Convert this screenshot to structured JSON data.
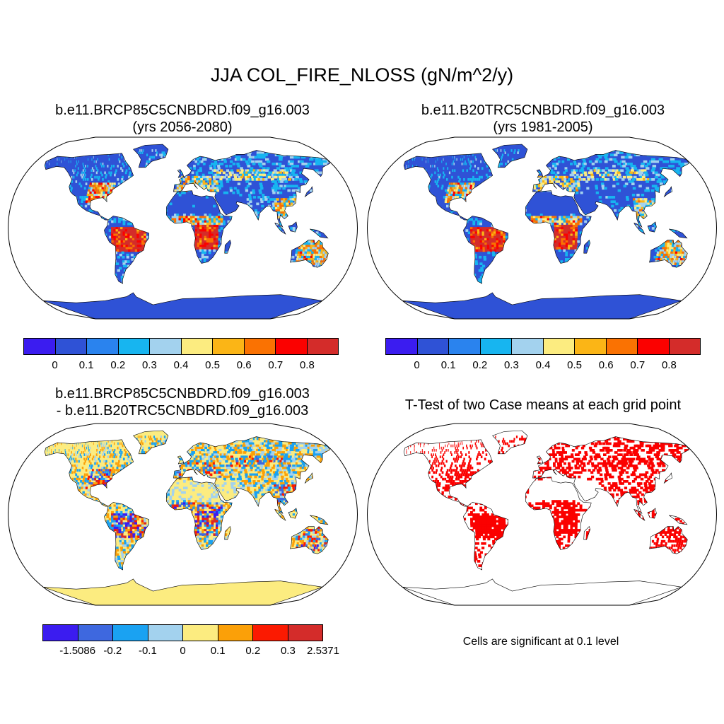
{
  "figure": {
    "title": "JJA COL_FIRE_NLOSS (gN/m^2/y)",
    "note": "Cells are significant at 0.1 level"
  },
  "colors": {
    "seq_palette": [
      "#3b1cf0",
      "#2f52d6",
      "#2a83ee",
      "#17b5f0",
      "#a3d2ee",
      "#fcec80",
      "#fbb516",
      "#fa7202",
      "#fb0100",
      "#d42c2a"
    ],
    "diff_palette": [
      "#3b1cf0",
      "#3e68df",
      "#1aa2f2",
      "#a3d2ee",
      "#fcec80",
      "#fba008",
      "#fb1a01",
      "#d42c2a"
    ],
    "ocean": "#ffffff",
    "land_low": "#2f52d6",
    "land_zero": "#fcec80",
    "significant": "#fb0100",
    "coast": "#000000"
  },
  "panels": [
    {
      "id": "future",
      "title_line1": "b.e11.BRCP85C5CNBDRD.f09_g16.003",
      "title_line2": "(yrs 2056-2080)",
      "colorbar_ticks": [
        "0",
        "0.1",
        "0.2",
        "0.3",
        "0.4",
        "0.5",
        "0.6",
        "0.7",
        "0.8"
      ]
    },
    {
      "id": "historical",
      "title_line1": "b.e11.B20TRC5CNBDRD.f09_g16.003",
      "title_line2": "(yrs 1981-2005)",
      "colorbar_ticks": [
        "0",
        "0.1",
        "0.2",
        "0.3",
        "0.4",
        "0.5",
        "0.6",
        "0.7",
        "0.8"
      ]
    },
    {
      "id": "difference",
      "title_line1": "b.e11.BRCP85C5CNBDRD.f09_g16.003",
      "title_line2": "- b.e11.B20TRC5CNBDRD.f09_g16.003",
      "colorbar_ticks": [
        "-1.5086",
        "-0.2",
        "-0.1",
        "0",
        "0.1",
        "0.2",
        "0.3",
        "2.5371"
      ]
    },
    {
      "id": "ttest",
      "title_line1": "T-Test of two Case means at each grid point",
      "title_line2": ""
    }
  ]
}
